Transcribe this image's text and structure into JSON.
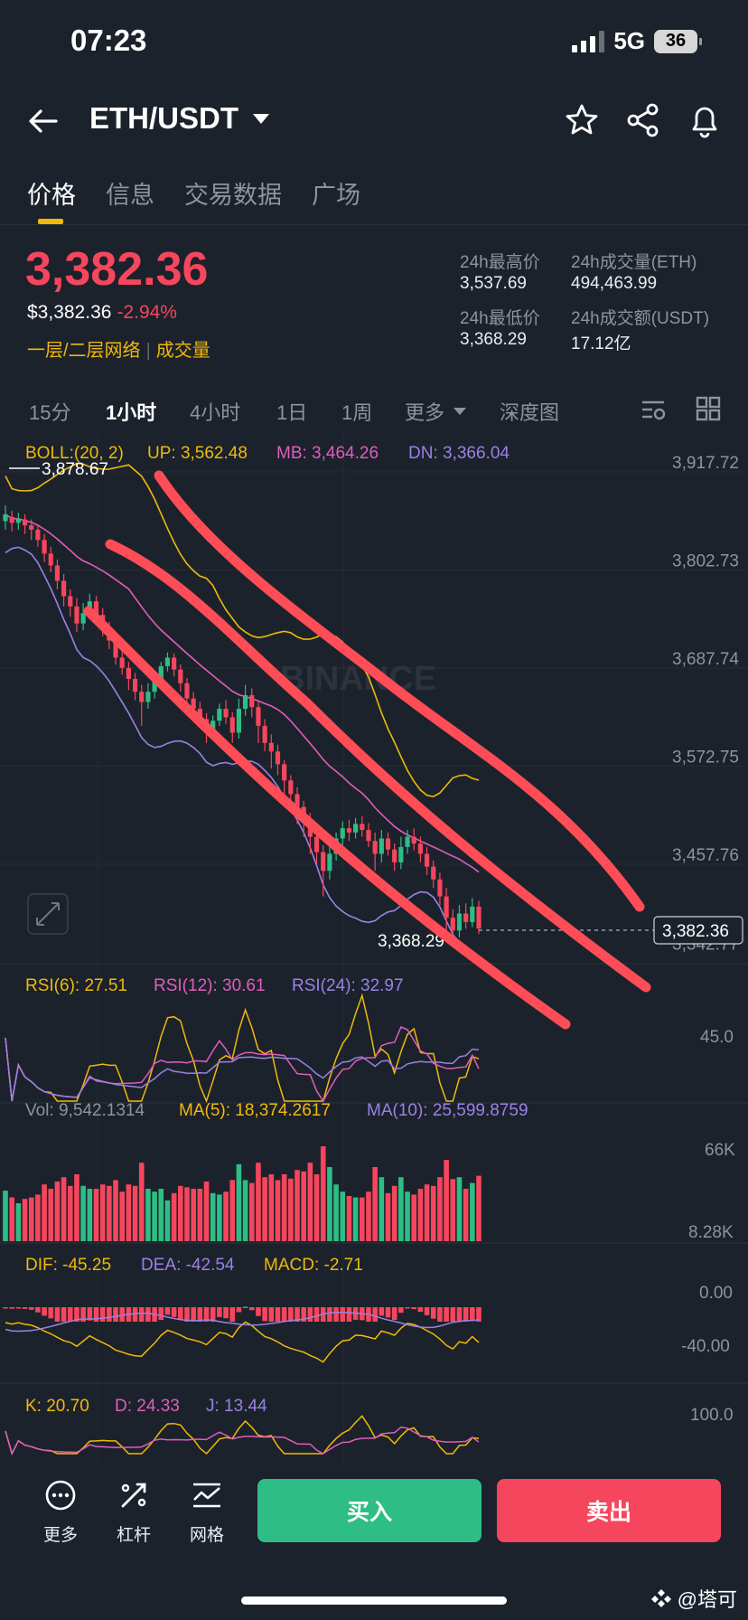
{
  "status": {
    "time": "07:23",
    "network": "5G",
    "battery": "36"
  },
  "header": {
    "pair": "ETH/USDT"
  },
  "tabs": [
    "价格",
    "信息",
    "交易数据",
    "广场"
  ],
  "price": {
    "last": "3,382.36",
    "usd": "$3,382.36",
    "change": "-2.94%",
    "links": [
      "一层/二层网络",
      "成交量"
    ]
  },
  "stats": {
    "high_label": "24h最高价",
    "high": "3,537.69",
    "vol_eth_label": "24h成交量(ETH)",
    "vol_eth": "494,463.99",
    "low_label": "24h最低价",
    "low": "3,368.29",
    "vol_usdt_label": "24h成交额(USDT)",
    "vol_usdt": "17.12亿"
  },
  "intervals": [
    "15分",
    "1小时",
    "4小时",
    "1日",
    "1周",
    "更多",
    "深度图"
  ],
  "active_interval": "1小时",
  "colors": {
    "up": "#2ebd85",
    "down": "#f6465d",
    "accent": "#f0b90b",
    "bg": "#1c222b",
    "draw": "#ff4d57"
  },
  "chart_data": {
    "type": "candlestick",
    "watermark": "BINANCE",
    "boll": {
      "label": "BOLL:(20, 2)",
      "up": "UP: 3,562.48",
      "mb": "MB: 3,464.26",
      "dn": "DN: 3,366.04"
    },
    "price_axis": [
      "3,917.72",
      "3,802.73",
      "3,687.74",
      "3,572.75",
      "3,457.76",
      "3,342.77"
    ],
    "y_range": [
      3342.77,
      3917.72
    ],
    "high_marker": "3,878.67",
    "low_marker": "3,368.29",
    "last_marker": "3,382.36",
    "rsi": {
      "r6": "RSI(6): 27.51",
      "r12": "RSI(12): 30.61",
      "r24": "RSI(24): 32.97",
      "axis": "45.0"
    },
    "vol": {
      "vol": "Vol: 9,542.1314",
      "ma5": "MA(5): 18,374.2617",
      "ma10": "MA(10): 25,599.8759",
      "axis_top": "66K",
      "axis_bottom": "8.28K"
    },
    "macd": {
      "dif": "DIF: -45.25",
      "dea": "DEA: -42.54",
      "macd": "MACD: -2.71",
      "axis_top": "0.00",
      "axis_bottom": "-40.00"
    },
    "kdj": {
      "k": "K: 20.70",
      "d": "D: 24.33",
      "j": "J: 13.44",
      "axis_top": "100.0"
    },
    "candles": [
      [
        3860,
        3868,
        3878.67,
        3850
      ],
      [
        3865,
        3858,
        3872,
        3848
      ],
      [
        3858,
        3862,
        3870,
        3850
      ],
      [
        3862,
        3855,
        3868,
        3845
      ],
      [
        3855,
        3850,
        3862,
        3838
      ],
      [
        3850,
        3838,
        3856,
        3830
      ],
      [
        3838,
        3822,
        3845,
        3812
      ],
      [
        3822,
        3808,
        3830,
        3800
      ],
      [
        3808,
        3790,
        3815,
        3780
      ],
      [
        3790,
        3772,
        3798,
        3760
      ],
      [
        3772,
        3760,
        3780,
        3748
      ],
      [
        3760,
        3740,
        3770,
        3730
      ],
      [
        3740,
        3752,
        3764,
        3732
      ],
      [
        3752,
        3766,
        3775,
        3745
      ],
      [
        3766,
        3750,
        3772,
        3742
      ],
      [
        3750,
        3735,
        3758,
        3725
      ],
      [
        3735,
        3720,
        3742,
        3710
      ],
      [
        3720,
        3700,
        3728,
        3692
      ],
      [
        3700,
        3688,
        3708,
        3680
      ],
      [
        3688,
        3675,
        3695,
        3662
      ],
      [
        3675,
        3660,
        3682,
        3650
      ],
      [
        3660,
        3648,
        3668,
        3620
      ],
      [
        3648,
        3660,
        3670,
        3640
      ],
      [
        3660,
        3672,
        3680,
        3652
      ],
      [
        3672,
        3690,
        3695,
        3665
      ],
      [
        3690,
        3700,
        3706,
        3684
      ],
      [
        3700,
        3686,
        3705,
        3678
      ],
      [
        3686,
        3670,
        3692,
        3660
      ],
      [
        3670,
        3652,
        3676,
        3645
      ],
      [
        3652,
        3640,
        3660,
        3630
      ],
      [
        3640,
        3628,
        3648,
        3618
      ],
      [
        3628,
        3612,
        3635,
        3600
      ],
      [
        3612,
        3626,
        3632,
        3605
      ],
      [
        3626,
        3640,
        3646,
        3620
      ],
      [
        3640,
        3630,
        3650,
        3622
      ],
      [
        3630,
        3612,
        3636,
        3600
      ],
      [
        3612,
        3640,
        3652,
        3605
      ],
      [
        3640,
        3656,
        3668,
        3632
      ],
      [
        3656,
        3642,
        3664,
        3630
      ],
      [
        3642,
        3620,
        3648,
        3600
      ],
      [
        3620,
        3600,
        3628,
        3590
      ],
      [
        3600,
        3590,
        3610,
        3570
      ],
      [
        3590,
        3575,
        3598,
        3562
      ],
      [
        3575,
        3556,
        3580,
        3540
      ],
      [
        3556,
        3540,
        3562,
        3525
      ],
      [
        3540,
        3525,
        3548,
        3505
      ],
      [
        3525,
        3510,
        3532,
        3490
      ],
      [
        3510,
        3490,
        3518,
        3470
      ],
      [
        3490,
        3472,
        3498,
        3458
      ],
      [
        3472,
        3450,
        3480,
        3420
      ],
      [
        3450,
        3470,
        3485,
        3440
      ],
      [
        3470,
        3488,
        3495,
        3462
      ],
      [
        3488,
        3500,
        3508,
        3480
      ],
      [
        3500,
        3495,
        3510,
        3485
      ],
      [
        3495,
        3505,
        3512,
        3488
      ],
      [
        3505,
        3498,
        3514,
        3490
      ],
      [
        3498,
        3485,
        3506,
        3478
      ],
      [
        3485,
        3470,
        3495,
        3450
      ],
      [
        3470,
        3488,
        3498,
        3460
      ],
      [
        3488,
        3475,
        3495,
        3468
      ],
      [
        3475,
        3460,
        3482,
        3450
      ],
      [
        3460,
        3478,
        3490,
        3452
      ],
      [
        3478,
        3490,
        3498,
        3470
      ],
      [
        3490,
        3482,
        3500,
        3474
      ],
      [
        3482,
        3470,
        3490,
        3460
      ],
      [
        3470,
        3455,
        3478,
        3445
      ],
      [
        3455,
        3440,
        3462,
        3430
      ],
      [
        3440,
        3420,
        3448,
        3410
      ],
      [
        3420,
        3395,
        3430,
        3380
      ],
      [
        3395,
        3380,
        3405,
        3368.29
      ],
      [
        3380,
        3400,
        3410,
        3372
      ],
      [
        3400,
        3390,
        3412,
        3382
      ],
      [
        3390,
        3408,
        3418,
        3384
      ],
      [
        3408,
        3382.36,
        3415,
        3376
      ]
    ]
  },
  "bottom": {
    "more": "更多",
    "leverage": "杠杆",
    "grid": "网格",
    "buy": "买入",
    "sell": "卖出"
  },
  "watermark": "@塔可"
}
